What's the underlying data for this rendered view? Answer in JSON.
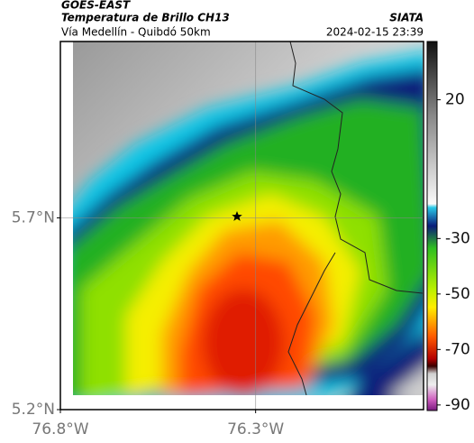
{
  "chart_data": {
    "type": "map",
    "title": "GOES-EAST",
    "subtitle": "Temperatura de Brillo CH13",
    "region": "Vía Medellín - Quibdó 50km",
    "source": "SIATA",
    "timestamp": "2024-02-15 23:39",
    "xlim": [
      -76.8,
      -75.87
    ],
    "ylim": [
      5.2,
      6.16
    ],
    "xticks": [
      {
        "value": -76.8,
        "label": "76.8°W"
      },
      {
        "value": -76.3,
        "label": "76.3°W"
      }
    ],
    "yticks": [
      {
        "value": 5.2,
        "label": "5.2°N"
      },
      {
        "value": 5.7,
        "label": "5.7°N"
      }
    ],
    "colorbar": {
      "lim": [
        41,
        -92
      ],
      "ticks": [
        20,
        -30,
        -50,
        -70,
        -90
      ]
    }
  }
}
